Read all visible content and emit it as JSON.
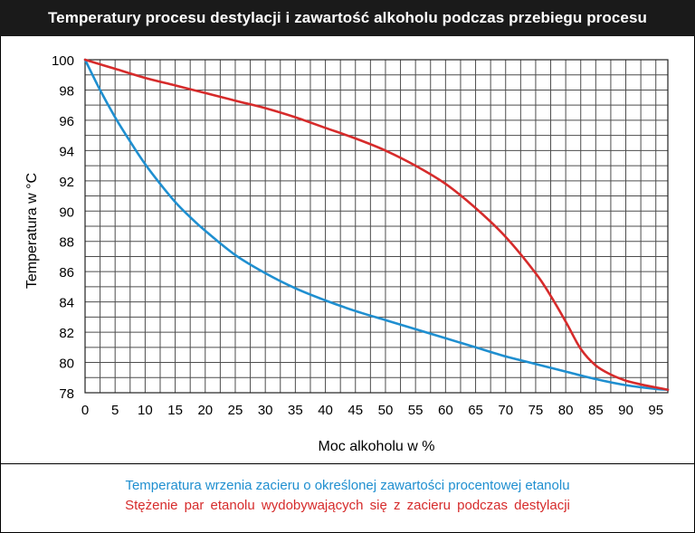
{
  "title": "Temperatury procesu destylacji i zawartość alkoholu podczas przebiegu procesu",
  "colors": {
    "blue": "#1f8fd0",
    "red": "#d62b2b",
    "grid": "#4d4d4d",
    "title_bg": "#1a1a1a"
  },
  "chart_data": {
    "type": "line",
    "title": "Temperatury procesu destylacji i zawartość alkoholu podczas przebiegu procesu",
    "xlabel": "Moc alkoholu w %",
    "ylabel": "Temperatura w °C",
    "xlim": [
      0,
      97
    ],
    "ylim": [
      78,
      100
    ],
    "x_ticks": [
      0,
      5,
      10,
      15,
      20,
      25,
      30,
      35,
      40,
      45,
      50,
      55,
      60,
      65,
      70,
      75,
      80,
      85,
      90,
      95
    ],
    "y_ticks": [
      78,
      80,
      82,
      84,
      86,
      88,
      90,
      92,
      94,
      96,
      98,
      100
    ],
    "grid": true,
    "legend_position": "bottom",
    "series": [
      {
        "name": "Temperatura wrzenia zacieru o określonej zawartości procentowej etanolu",
        "color": "#1f8fd0",
        "x": [
          0,
          2.5,
          5,
          7.5,
          10,
          12.5,
          15,
          17.5,
          20,
          25,
          30,
          35,
          40,
          45,
          50,
          55,
          60,
          65,
          70,
          75,
          80,
          85,
          90,
          95,
          97
        ],
        "y": [
          100,
          98,
          96.2,
          94.6,
          93.1,
          91.8,
          90.6,
          89.6,
          88.7,
          87.1,
          85.9,
          84.9,
          84.1,
          83.4,
          82.8,
          82.2,
          81.6,
          81.0,
          80.4,
          79.9,
          79.4,
          78.9,
          78.5,
          78.25,
          78.2
        ]
      },
      {
        "name": "Stężenie par etanolu wydobywających się z zacieru podczas destylacji",
        "color": "#d62b2b",
        "x": [
          0,
          5,
          10,
          15,
          20,
          25,
          30,
          35,
          40,
          45,
          50,
          55,
          60,
          65,
          70,
          75,
          77.5,
          80,
          82.5,
          85,
          87.5,
          90,
          92.5,
          95,
          97
        ],
        "y": [
          100,
          99.4,
          98.8,
          98.3,
          97.8,
          97.3,
          96.8,
          96.2,
          95.5,
          94.8,
          94.0,
          93.0,
          91.8,
          90.2,
          88.3,
          85.9,
          84.4,
          82.7,
          80.9,
          79.8,
          79.2,
          78.8,
          78.55,
          78.35,
          78.2
        ]
      }
    ]
  }
}
